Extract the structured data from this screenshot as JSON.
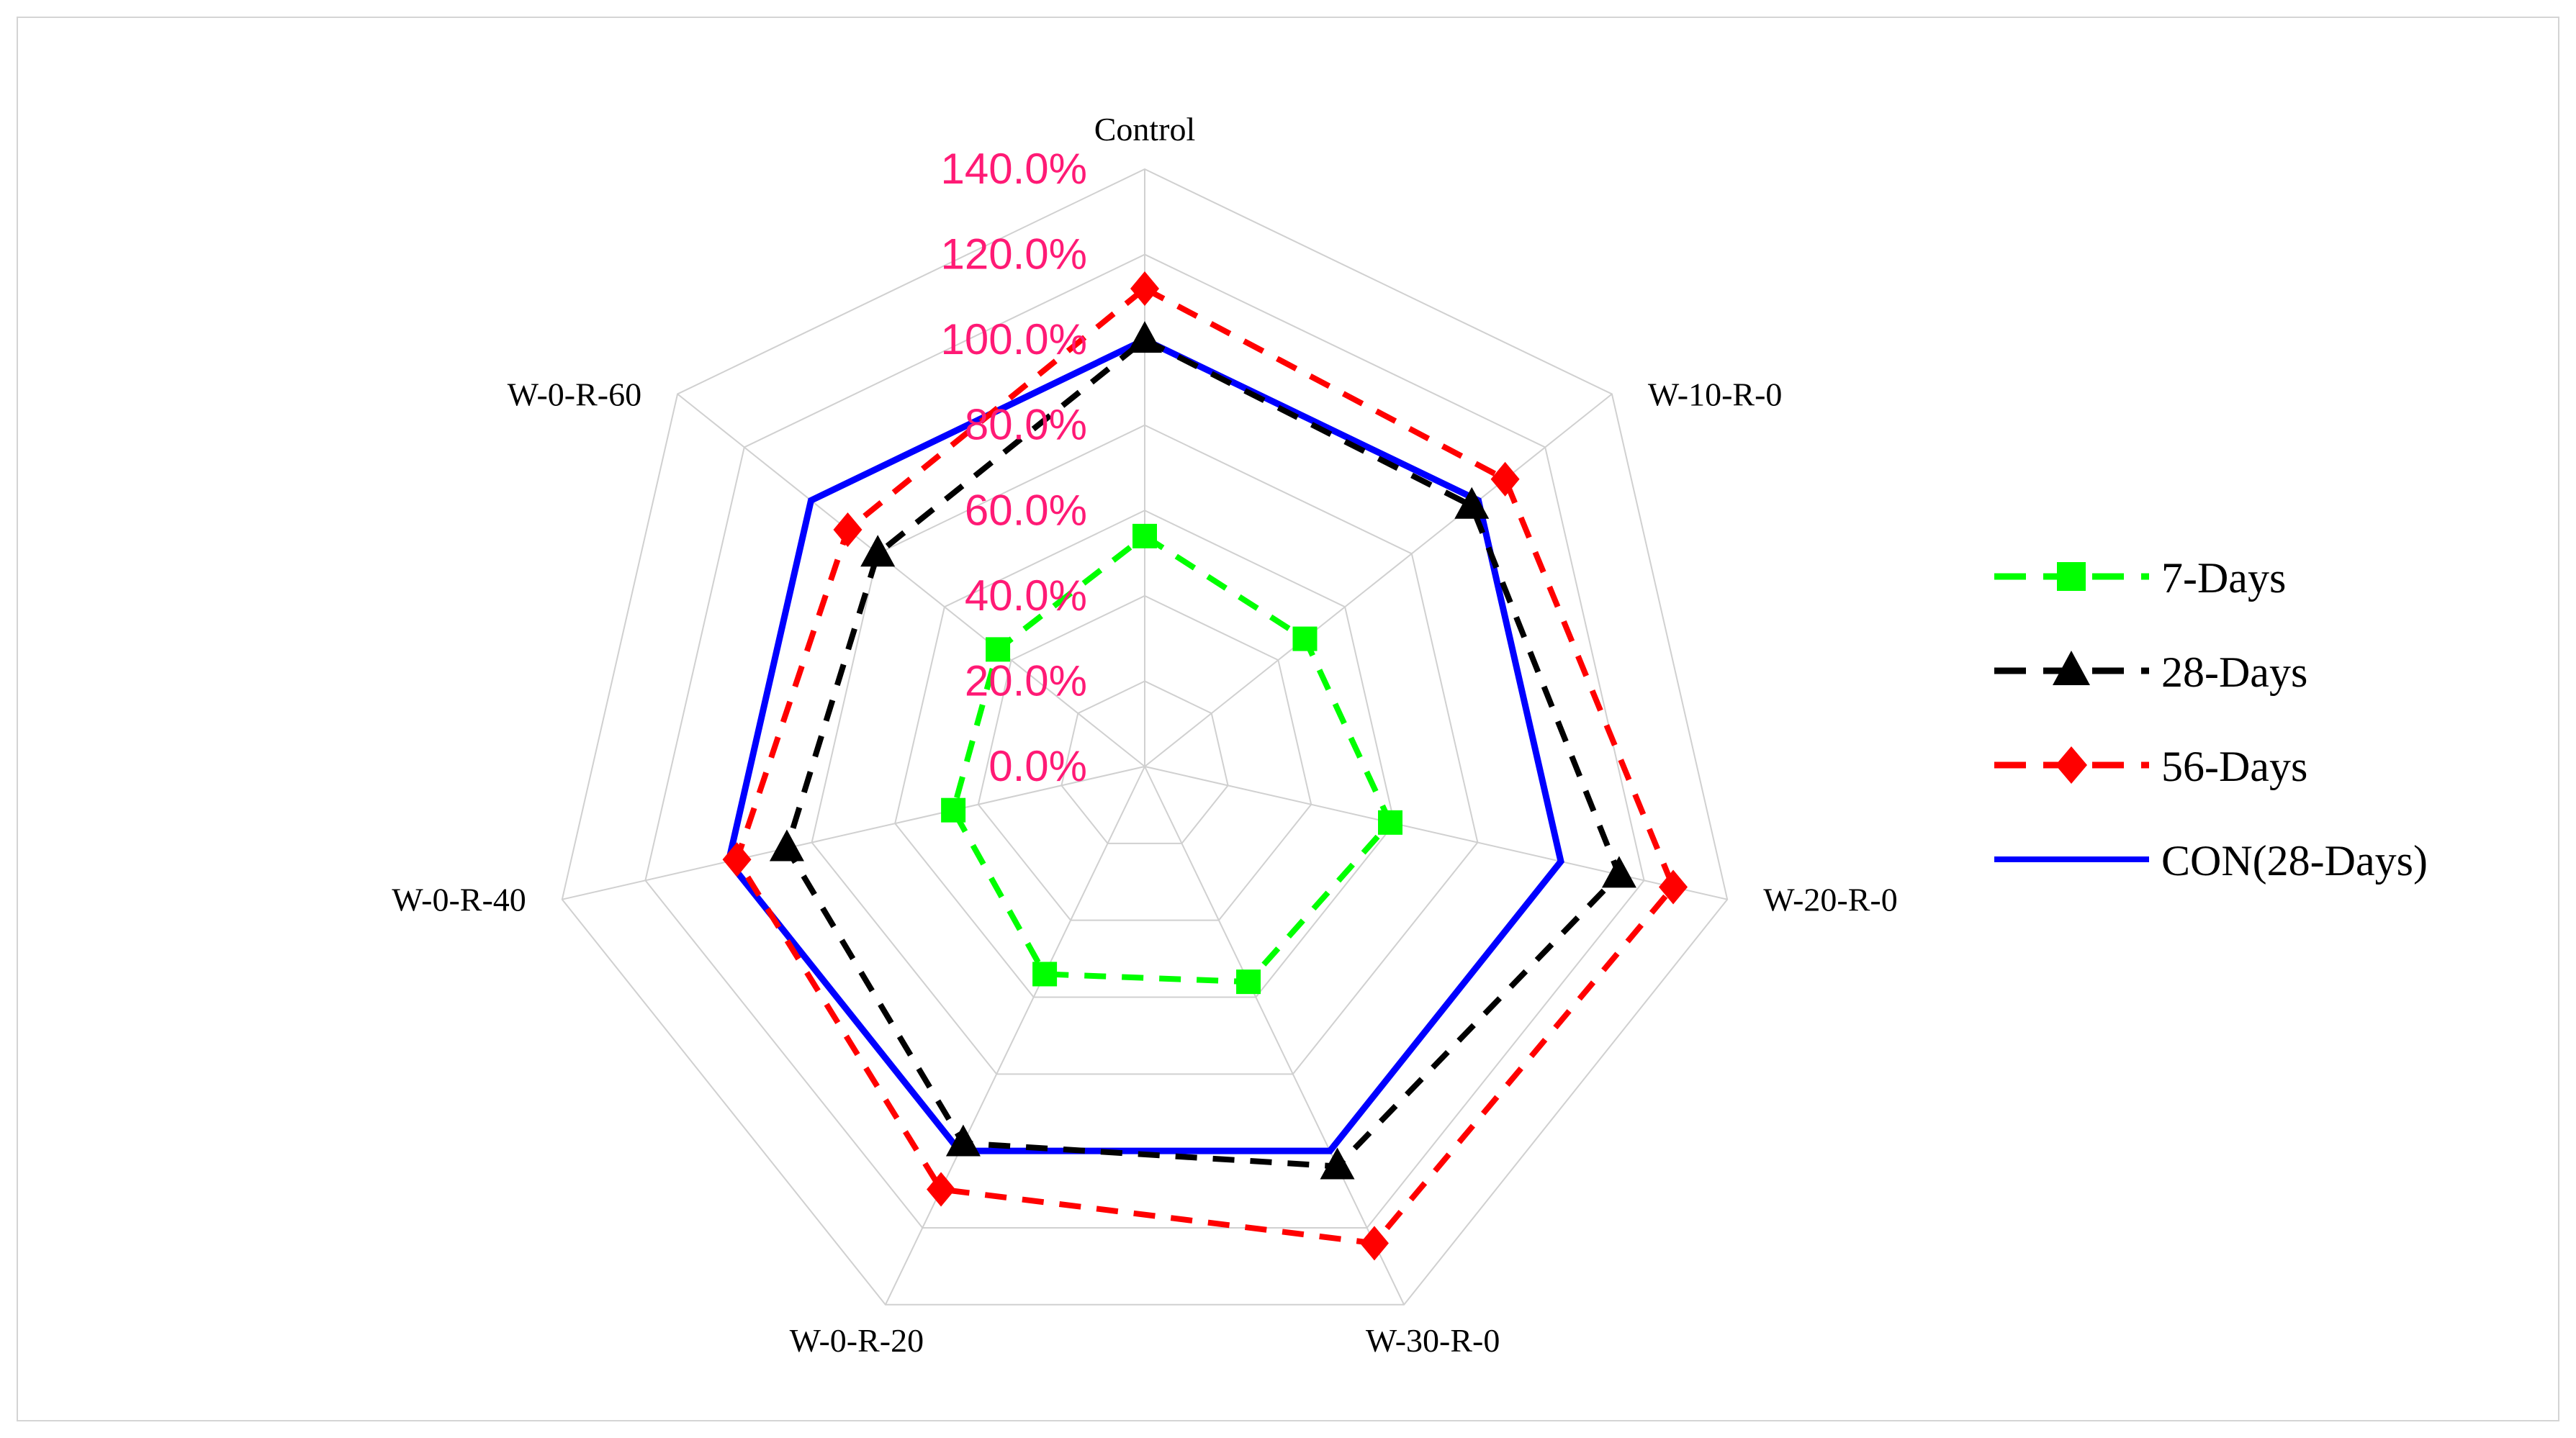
{
  "chart_data": {
    "type": "radar",
    "title": "",
    "categories": [
      "Control",
      "W-10-R-0",
      "W-20-R-0",
      "W-30-R-0",
      "W-0-R-20",
      "W-0-R-40",
      "W-0-R-60"
    ],
    "r_axis": {
      "min": 0,
      "max": 140,
      "step": 20,
      "tick_labels": [
        "0.0%",
        "20.0%",
        "40.0%",
        "60.0%",
        "80.0%",
        "100.0%",
        "120.0%",
        "140.0%"
      ],
      "tick_color": "#ff1a75"
    },
    "series": [
      {
        "name": "7-Days",
        "values": [
          54,
          48,
          59,
          56,
          54,
          46,
          44
        ],
        "color": "#00ff00",
        "line": "dashed",
        "marker": "square"
      },
      {
        "name": "28-Days",
        "values": [
          100,
          98,
          114,
          104,
          98,
          86,
          80
        ],
        "color": "#000000",
        "line": "dashed",
        "marker": "triangle"
      },
      {
        "name": "56-Days",
        "values": [
          112,
          108,
          127,
          124,
          110,
          98,
          89
        ],
        "color": "#ff0000",
        "line": "dashed",
        "marker": "diamond"
      },
      {
        "name": "CON(28-Days)",
        "values": [
          100,
          100,
          100,
          100,
          100,
          100,
          100
        ],
        "color": "#0000ff",
        "line": "solid",
        "marker": "none"
      }
    ],
    "legend_position": "right",
    "grid": true
  }
}
